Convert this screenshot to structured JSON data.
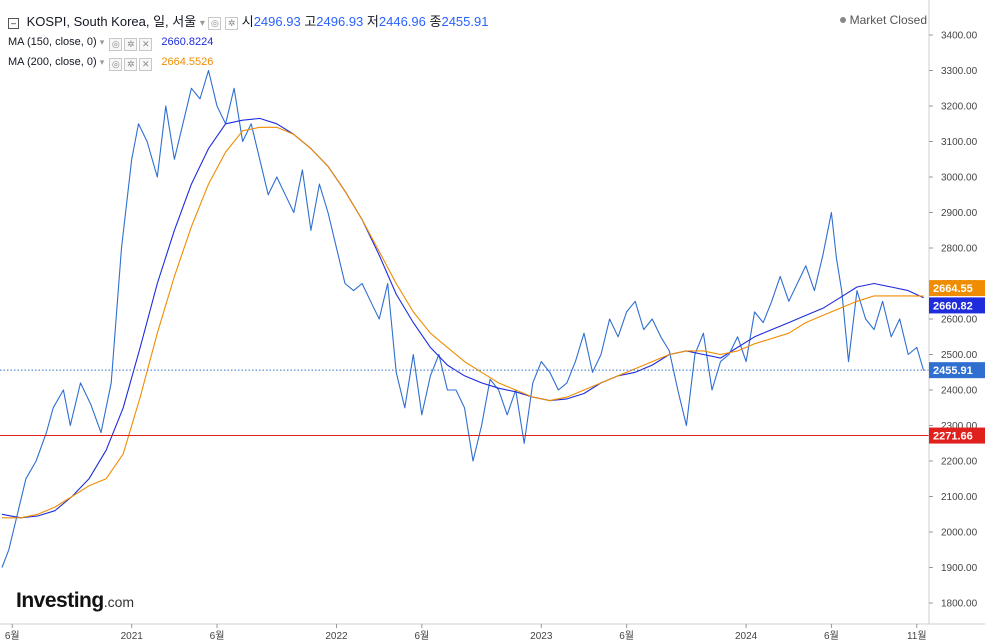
{
  "header": {
    "symbol": "KOSPI, South Korea, 일, 서울",
    "open_label": "시",
    "open": "2496.93",
    "high_label": "고",
    "high": "2496.93",
    "low_label": "저",
    "low": "2446.96",
    "close_label": "종",
    "close": "2455.91"
  },
  "status": "Market Closed",
  "indicators": [
    {
      "label": "MA (150, close, 0)",
      "value": "2660.8224",
      "color": "#1e2cdb"
    },
    {
      "label": "MA (200, close, 0)",
      "value": "2664.5526",
      "color": "#f08c00"
    }
  ],
  "logo": {
    "text": "Investing",
    "suffix": ".com"
  },
  "chart_data": {
    "type": "line",
    "ylim": [
      1750,
      3450
    ],
    "y_ticks": [
      1800,
      1900,
      2000,
      2100,
      2200,
      2300,
      2400,
      2500,
      2600,
      2700,
      2800,
      2900,
      3000,
      3100,
      3200,
      3300,
      3400
    ],
    "y_tick_labels": [
      "1800.00",
      "1900.00",
      "2000.00",
      "2100.00",
      "2200.00",
      "2300.00",
      "2400.00",
      "2500.00",
      "2600.00",
      "2700.00",
      "2800.00",
      "2900.00",
      "3000.00",
      "3100.00",
      "3200.00",
      "3300.00",
      "3400.00"
    ],
    "x_ticks": [
      {
        "t": 0.0,
        "label": "6월"
      },
      {
        "t": 7.0,
        "label": "2021"
      },
      {
        "t": 12.0,
        "label": "6월"
      },
      {
        "t": 19.0,
        "label": "2022"
      },
      {
        "t": 24.0,
        "label": "6월"
      },
      {
        "t": 31.0,
        "label": "2023"
      },
      {
        "t": 36.0,
        "label": "6월"
      },
      {
        "t": 43.0,
        "label": "2024"
      },
      {
        "t": 48.0,
        "label": "6월"
      },
      {
        "t": 53.0,
        "label": "11월"
      }
    ],
    "x_unit": "months since Jun 2020",
    "xlim": [
      -0.6,
      53.6
    ],
    "series": [
      {
        "name": "KOSPI",
        "color": "#2f6fd0",
        "x": [
          -0.6,
          -0.2,
          0.2,
          0.8,
          1.4,
          2.0,
          2.4,
          3.0,
          3.4,
          4.0,
          4.6,
          5.2,
          5.8,
          6.4,
          7.0,
          7.4,
          7.9,
          8.5,
          9.0,
          9.5,
          10.0,
          10.5,
          11.0,
          11.5,
          12.0,
          12.5,
          13.0,
          13.5,
          14.0,
          14.5,
          15.0,
          15.5,
          16.0,
          16.5,
          17.0,
          17.5,
          18.0,
          18.5,
          19.0,
          19.5,
          20.0,
          20.5,
          21.0,
          21.5,
          22.0,
          22.5,
          23.0,
          23.5,
          24.0,
          24.5,
          25.0,
          25.5,
          26.0,
          26.5,
          27.0,
          27.5,
          28.0,
          28.5,
          29.0,
          29.5,
          30.0,
          30.5,
          31.0,
          31.5,
          32.0,
          32.5,
          33.0,
          33.5,
          34.0,
          34.5,
          35.0,
          35.5,
          36.0,
          36.5,
          37.0,
          37.5,
          38.0,
          38.5,
          39.0,
          39.5,
          40.0,
          40.5,
          41.0,
          41.5,
          42.0,
          42.5,
          43.0,
          43.5,
          44.0,
          44.5,
          45.0,
          45.5,
          46.0,
          46.5,
          47.0,
          47.5,
          48.0,
          48.3,
          48.6,
          49.0,
          49.5,
          50.0,
          50.5,
          51.0,
          51.5,
          52.0,
          52.5,
          53.0,
          53.4
        ],
        "values": [
          1900,
          1950,
          2030,
          2150,
          2200,
          2280,
          2350,
          2400,
          2300,
          2420,
          2360,
          2280,
          2420,
          2800,
          3050,
          3150,
          3100,
          3000,
          3200,
          3050,
          3150,
          3250,
          3220,
          3300,
          3200,
          3150,
          3250,
          3100,
          3150,
          3050,
          2950,
          3000,
          2950,
          2900,
          3020,
          2850,
          2980,
          2900,
          2800,
          2700,
          2680,
          2700,
          2650,
          2600,
          2700,
          2450,
          2350,
          2500,
          2330,
          2440,
          2500,
          2400,
          2400,
          2350,
          2200,
          2300,
          2430,
          2400,
          2330,
          2400,
          2250,
          2420,
          2480,
          2450,
          2400,
          2420,
          2480,
          2560,
          2450,
          2500,
          2600,
          2550,
          2620,
          2650,
          2570,
          2600,
          2550,
          2510,
          2400,
          2300,
          2500,
          2560,
          2400,
          2480,
          2500,
          2550,
          2480,
          2620,
          2590,
          2650,
          2720,
          2650,
          2700,
          2750,
          2680,
          2780,
          2900,
          2770,
          2680,
          2480,
          2680,
          2600,
          2570,
          2650,
          2550,
          2600,
          2500,
          2520,
          2455
        ]
      },
      {
        "name": "MA (150, close, 0)",
        "color": "#1e2cdb",
        "x": [
          -0.6,
          0.5,
          1.5,
          2.5,
          3.5,
          4.5,
          5.5,
          6.5,
          7.5,
          8.5,
          9.5,
          10.5,
          11.5,
          12.5,
          13.5,
          14.5,
          15.5,
          16.5,
          17.5,
          18.5,
          19.5,
          20.5,
          21.5,
          22.5,
          23.5,
          24.5,
          25.5,
          26.5,
          27.5,
          28.5,
          29.5,
          30.5,
          31.5,
          32.5,
          33.5,
          34.5,
          35.5,
          36.5,
          37.5,
          38.5,
          39.5,
          40.5,
          41.5,
          42.5,
          43.5,
          44.5,
          45.5,
          46.5,
          47.5,
          48.5,
          49.5,
          50.5,
          51.5,
          52.5,
          53.4
        ],
        "values": [
          2050,
          2040,
          2045,
          2060,
          2100,
          2150,
          2230,
          2350,
          2520,
          2700,
          2850,
          2980,
          3080,
          3150,
          3160,
          3165,
          3150,
          3120,
          3080,
          3030,
          2960,
          2880,
          2780,
          2670,
          2590,
          2520,
          2470,
          2440,
          2420,
          2405,
          2395,
          2380,
          2370,
          2375,
          2390,
          2420,
          2440,
          2450,
          2470,
          2500,
          2510,
          2500,
          2490,
          2520,
          2550,
          2570,
          2590,
          2610,
          2630,
          2660,
          2690,
          2700,
          2690,
          2680,
          2660
        ]
      },
      {
        "name": "MA (200, close, 0)",
        "color": "#f08c00",
        "x": [
          -0.6,
          0.5,
          1.5,
          2.5,
          3.5,
          4.5,
          5.5,
          6.5,
          7.5,
          8.5,
          9.5,
          10.5,
          11.5,
          12.5,
          13.5,
          14.5,
          15.5,
          16.5,
          17.5,
          18.5,
          19.5,
          20.5,
          21.5,
          22.5,
          23.5,
          24.5,
          25.5,
          26.5,
          27.5,
          28.5,
          29.5,
          30.5,
          31.5,
          32.5,
          33.5,
          34.5,
          35.5,
          36.5,
          37.5,
          38.5,
          39.5,
          40.5,
          41.5,
          42.5,
          43.5,
          44.5,
          45.5,
          46.5,
          47.5,
          48.5,
          49.5,
          50.5,
          51.5,
          52.5,
          53.4
        ],
        "values": [
          2040,
          2040,
          2050,
          2070,
          2100,
          2130,
          2150,
          2220,
          2380,
          2560,
          2720,
          2860,
          2980,
          3070,
          3130,
          3140,
          3140,
          3120,
          3080,
          3030,
          2960,
          2880,
          2790,
          2700,
          2620,
          2560,
          2520,
          2480,
          2450,
          2420,
          2400,
          2380,
          2370,
          2380,
          2400,
          2420,
          2440,
          2460,
          2480,
          2500,
          2510,
          2510,
          2500,
          2510,
          2530,
          2545,
          2560,
          2590,
          2610,
          2630,
          2650,
          2665,
          2665,
          2665,
          2664.55
        ]
      }
    ],
    "reference_lines": [
      {
        "value": 2455.91,
        "style": "dotted",
        "color": "#2f6fd0",
        "label": "2455.91"
      },
      {
        "value": 2271.66,
        "style": "solid",
        "color": "#e0201c",
        "label": "2271.66"
      }
    ],
    "price_tags": [
      {
        "value": 2664.55,
        "label": "2664.55",
        "color": "#f08c00"
      },
      {
        "value": 2660.82,
        "label": "2660.82",
        "color": "#1e2cdb"
      },
      {
        "value": 2455.91,
        "label": "2455.91",
        "color": "#2f6fd0"
      },
      {
        "value": 2271.66,
        "label": "2271.66",
        "color": "#e0201c"
      }
    ]
  }
}
